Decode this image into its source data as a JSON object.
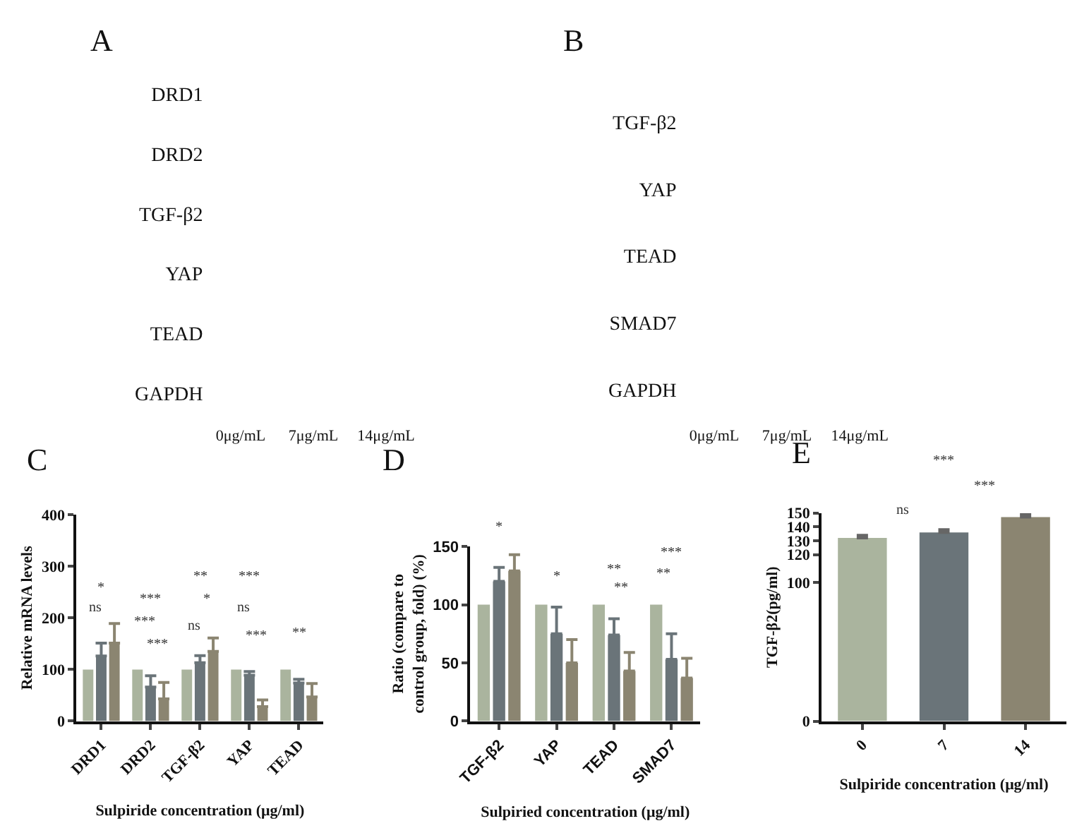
{
  "chart_data": [
    {
      "type": "other",
      "title": "A",
      "categories": [
        "0μg/mL",
        "7μg/mL",
        "14μg/mL"
      ],
      "y_categories": [
        "DRD1",
        "DRD2",
        "TGF-β2",
        "YAP",
        "TEAD",
        "GAPDH"
      ]
    },
    {
      "type": "other",
      "title": "B",
      "categories": [
        "0μg/mL",
        "7μg/mL",
        "14μg/mL"
      ],
      "y_categories": [
        "TGF-β2",
        "YAP",
        "TEAD",
        "SMAD7",
        "GAPDH"
      ]
    },
    {
      "type": "bar",
      "title": "C",
      "xlabel": "Sulpiride concentration (μg/ml)",
      "ylabel": "Relative mRNA levels",
      "categories": [
        "DRD1",
        "DRD2",
        "TGF-β2",
        "YAP",
        "TEAD"
      ],
      "ylim": [
        0,
        400
      ],
      "yticks": [
        0,
        100,
        200,
        300,
        400
      ],
      "series": [
        {
          "color": "#aab49e",
          "values": [
            100,
            100,
            100,
            100,
            100
          ]
        },
        {
          "color": "#6a7479",
          "values": [
            126,
            66,
            113,
            89,
            74
          ],
          "errors": [
            [
              126,
              151
            ],
            [
              66,
              88
            ],
            [
              113,
              127
            ],
            [
              89,
              96
            ],
            [
              74,
              81
            ]
          ]
        },
        {
          "color": "#8b8571",
          "values": [
            151,
            43,
            135,
            28,
            47
          ],
          "errors": [
            [
              151,
              189
            ],
            [
              43,
              75
            ],
            [
              135,
              161
            ],
            [
              28,
              41
            ],
            [
              47,
              73
            ]
          ]
        }
      ],
      "annotations": [
        "*",
        "ns",
        "***",
        "***",
        "***",
        "**",
        "*",
        "ns",
        "***",
        "ns",
        "***",
        "**"
      ]
    },
    {
      "type": "bar",
      "title": "D",
      "xlabel": "Sulpiried concentration (μg/ml)",
      "ylabel": "Ratio (compare to\ncontrol group, fold) (%)",
      "categories": [
        "TGF-β2",
        "YAP",
        "TEAD",
        "SMAD7"
      ],
      "ylim": [
        0,
        150
      ],
      "yticks": [
        0,
        50,
        100,
        150
      ],
      "series": [
        {
          "color": "#aab49e",
          "values": [
            100,
            100,
            100,
            100
          ]
        },
        {
          "color": "#6a7479",
          "values": [
            120,
            75,
            74,
            53
          ],
          "errors": [
            [
              120,
              132
            ],
            [
              75,
              98
            ],
            [
              74,
              88
            ],
            [
              53,
              75
            ]
          ]
        },
        {
          "color": "#8b8571",
          "values": [
            129,
            50,
            43,
            37
          ],
          "errors": [
            [
              129,
              143
            ],
            [
              50,
              70
            ],
            [
              43,
              59
            ],
            [
              37,
              54
            ]
          ]
        }
      ],
      "annotations": [
        "*",
        "*",
        "**",
        "**",
        "***",
        "**"
      ]
    },
    {
      "type": "bar",
      "title": "E",
      "xlabel": "Sulpiride concentration (μg/ml)",
      "ylabel": "TGF-β2(pg/ml)",
      "categories": [
        "0",
        "7",
        "14"
      ],
      "ylim": [
        0,
        150
      ],
      "yticks": [
        0,
        100,
        120,
        130,
        140,
        150
      ],
      "colors": [
        "#aab49e",
        "#6a7479",
        "#8b8571"
      ],
      "values": [
        132,
        136,
        147
      ],
      "errors": [
        [
          132,
          134
        ],
        [
          136,
          138
        ],
        [
          147,
          149
        ]
      ],
      "annotations": [
        "***",
        "***",
        "ns"
      ]
    }
  ]
}
